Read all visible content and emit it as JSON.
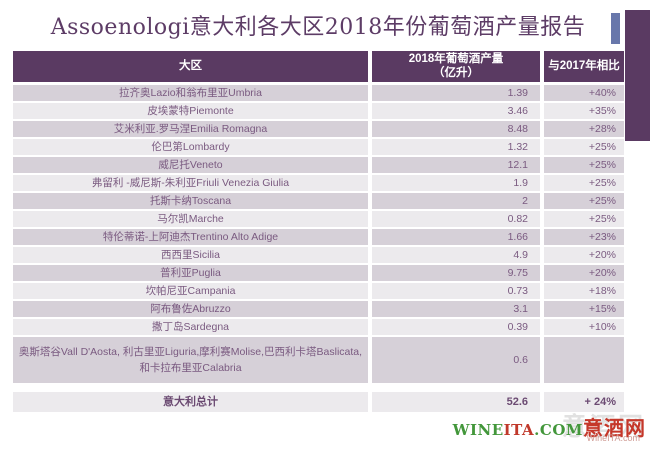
{
  "title": "Assoenologi意大利各大区2018年份葡萄酒产量报告",
  "table": {
    "header": {
      "region": "大区",
      "production": "2018年葡萄酒产量\n（亿升）",
      "yoy": "与2017年相比"
    },
    "rows": [
      {
        "region": "拉齐奥Lazio和翁布里亚Umbria",
        "production": "1.39",
        "yoy": "+40%"
      },
      {
        "region": "皮埃蒙特Piemonte",
        "production": "3.46",
        "yoy": "+35%"
      },
      {
        "region": "艾米利亚.罗马涅Emilia Romagna",
        "production": "8.48",
        "yoy": "+28%"
      },
      {
        "region": "伦巴第Lombardy",
        "production": "1.32",
        "yoy": "+25%"
      },
      {
        "region": "威尼托Veneto",
        "production": "12.1",
        "yoy": "+25%"
      },
      {
        "region": "弗留利 -威尼斯-朱利亚Friuli Venezia Giulia",
        "production": "1.9",
        "yoy": "+25%"
      },
      {
        "region": "托斯卡纳Toscana",
        "production": "2",
        "yoy": "+25%"
      },
      {
        "region": "马尔凯Marche",
        "production": "0.82",
        "yoy": "+25%"
      },
      {
        "region": "特伦蒂诺-上阿迪杰Trentino Alto Adige",
        "production": "1.66",
        "yoy": "+23%"
      },
      {
        "region": "西西里Sicilia",
        "production": "4.9",
        "yoy": "+20%"
      },
      {
        "region": "普利亚Puglia",
        "production": "9.75",
        "yoy": "+20%"
      },
      {
        "region": "坎帕尼亚Campania",
        "production": "0.73",
        "yoy": "+18%"
      },
      {
        "region": "阿布鲁佐Abruzzo",
        "production": "3.1",
        "yoy": "+15%"
      },
      {
        "region": "撒丁岛Sardegna",
        "production": "0.39",
        "yoy": "+10%"
      },
      {
        "region": "奥斯塔谷Vall D'Aosta, 利古里亚Liguria,摩利赛Molise,巴西利卡塔Baslicata,\n和卡拉布里亚Calabria",
        "production": "0.6",
        "yoy": ""
      }
    ],
    "total": {
      "region": "意大利总计",
      "production": "52.6",
      "yoy": "+ 24%"
    }
  },
  "watermark": {
    "wine": "WINE",
    "ita": "ITA",
    "com": ".COM",
    "site_cn": "意酒网",
    "ghost": "意酒网",
    "site_small": "WineITA.com"
  },
  "colors": {
    "accent_purple": "#5a3a62",
    "accent_blue": "#6877ab",
    "row_dark": "#d6d0d8",
    "row_light": "#eceaed",
    "logo_green": "#43973b",
    "logo_red": "#c5372a"
  },
  "chart_data": {
    "type": "table",
    "title": "Assoenologi意大利各大区2018年份葡萄酒产量报告",
    "columns": [
      "大区",
      "2018年葡萄酒产量（亿升）",
      "与2017年相比"
    ],
    "rows": [
      [
        "拉齐奥Lazio和翁布里亚Umbria",
        1.39,
        "+40%"
      ],
      [
        "皮埃蒙特Piemonte",
        3.46,
        "+35%"
      ],
      [
        "艾米利亚.罗马涅Emilia Romagna",
        8.48,
        "+28%"
      ],
      [
        "伦巴第Lombardy",
        1.32,
        "+25%"
      ],
      [
        "威尼托Veneto",
        12.1,
        "+25%"
      ],
      [
        "弗留利 -威尼斯-朱利亚Friuli Venezia Giulia",
        1.9,
        "+25%"
      ],
      [
        "托斯卡纳Toscana",
        2,
        "+25%"
      ],
      [
        "马尔凯Marche",
        0.82,
        "+25%"
      ],
      [
        "特伦蒂诺-上阿迪杰Trentino Alto Adige",
        1.66,
        "+23%"
      ],
      [
        "西西里Sicilia",
        4.9,
        "+20%"
      ],
      [
        "普利亚Puglia",
        9.75,
        "+20%"
      ],
      [
        "坎帕尼亚Campania",
        0.73,
        "+18%"
      ],
      [
        "阿布鲁佐Abruzzo",
        3.1,
        "+15%"
      ],
      [
        "撒丁岛Sardegna",
        0.39,
        "+10%"
      ],
      [
        "奥斯塔谷Vall D'Aosta, 利古里亚Liguria,摩利赛Molise,巴西利卡塔Baslicata,和卡拉布里亚Calabria",
        0.6,
        ""
      ],
      [
        "意大利总计",
        52.6,
        "+24%"
      ]
    ]
  }
}
